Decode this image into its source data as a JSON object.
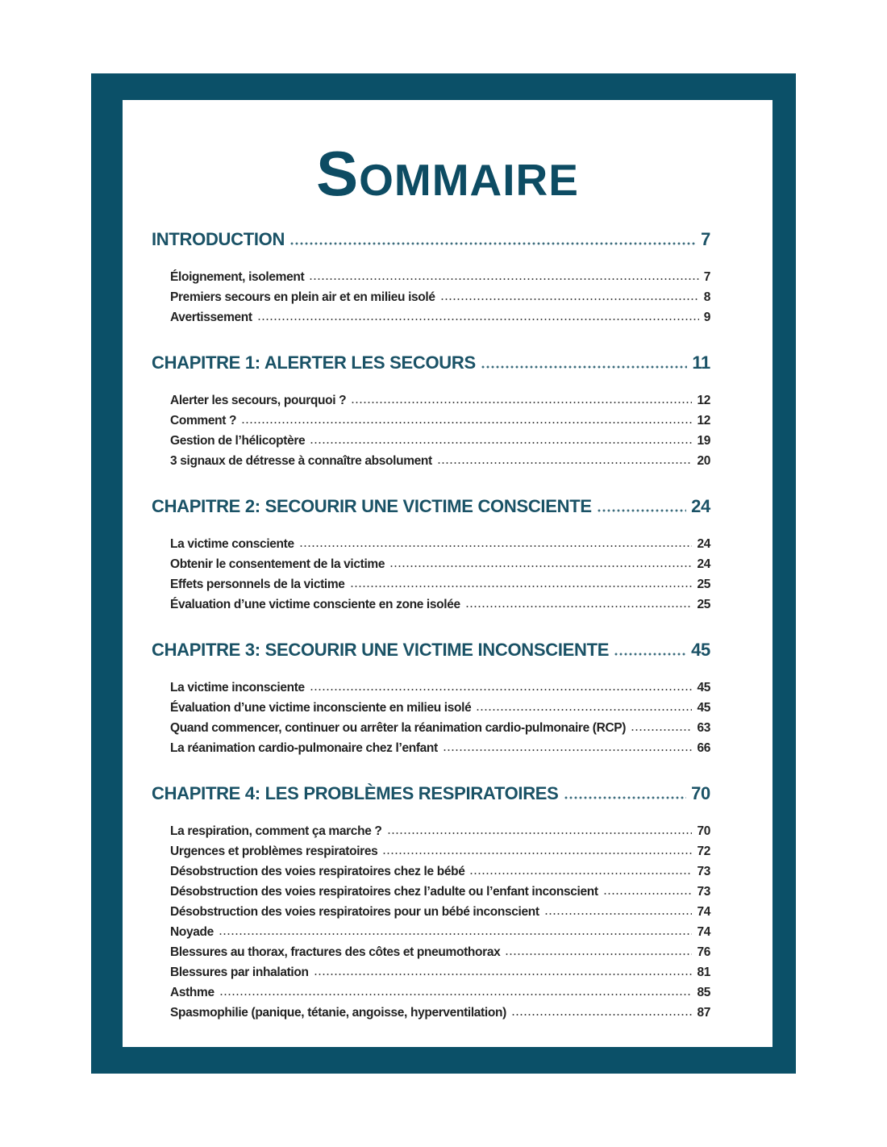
{
  "title": "Sommaire",
  "colors": {
    "frame": "#0b5068",
    "heading": "#1a5266",
    "text": "#222222"
  },
  "sections": [
    {
      "label": "INTRODUCTION",
      "page": "7",
      "entries": [
        {
          "label": "Éloignement, isolement",
          "page": "7"
        },
        {
          "label": "Premiers secours en plein air et en milieu isolé",
          "page": "8"
        },
        {
          "label": "Avertissement",
          "page": "9"
        }
      ]
    },
    {
      "label": "CHAPITRE 1: ALERTER LES SECOURS",
      "page": "11",
      "entries": [
        {
          "label": "Alerter les secours, pourquoi ?",
          "page": "12"
        },
        {
          "label": "Comment ?",
          "page": "12"
        },
        {
          "label": "Gestion de l’hélicoptère",
          "page": "19"
        },
        {
          "label": "3 signaux de détresse à connaître absolument",
          "page": "20"
        }
      ]
    },
    {
      "label": "CHAPITRE 2: SECOURIR UNE VICTIME CONSCIENTE",
      "page": "24",
      "entries": [
        {
          "label": "La victime consciente",
          "page": "24"
        },
        {
          "label": "Obtenir le consentement de la victime",
          "page": "24"
        },
        {
          "label": "Effets personnels de la victime",
          "page": "25"
        },
        {
          "label": "Évaluation d’une victime consciente en zone isolée",
          "page": "25"
        }
      ]
    },
    {
      "label": "CHAPITRE 3: SECOURIR UNE VICTIME INCONSCIENTE",
      "page": "45",
      "entries": [
        {
          "label": "La victime inconsciente",
          "page": "45"
        },
        {
          "label": "Évaluation d’une victime inconsciente en milieu isolé",
          "page": "45"
        },
        {
          "label": "Quand commencer, continuer ou arrêter la réanimation cardio-pulmonaire (RCP)",
          "page": "63"
        },
        {
          "label": "La réanimation cardio-pulmonaire chez l’enfant",
          "page": "66"
        }
      ]
    },
    {
      "label": "CHAPITRE 4: LES PROBLÈMES RESPIRATOIRES",
      "page": "70",
      "entries": [
        {
          "label": "La respiration, comment ça marche ?",
          "page": "70"
        },
        {
          "label": "Urgences et problèmes respiratoires",
          "page": "72"
        },
        {
          "label": "Désobstruction des voies respiratoires chez le bébé",
          "page": "73"
        },
        {
          "label": "Désobstruction des voies respiratoires chez l’adulte ou l’enfant inconscient",
          "page": "73"
        },
        {
          "label": "Désobstruction des voies respiratoires pour un bébé inconscient",
          "page": "74"
        },
        {
          "label": "Noyade",
          "page": "74"
        },
        {
          "label": "Blessures au thorax, fractures des côtes et pneumothorax",
          "page": "76"
        },
        {
          "label": "Blessures par inhalation",
          "page": "81"
        },
        {
          "label": "Asthme",
          "page": "85"
        },
        {
          "label": "Spasmophilie (panique, tétanie, angoisse, hyperventilation)",
          "page": "87"
        }
      ]
    }
  ]
}
